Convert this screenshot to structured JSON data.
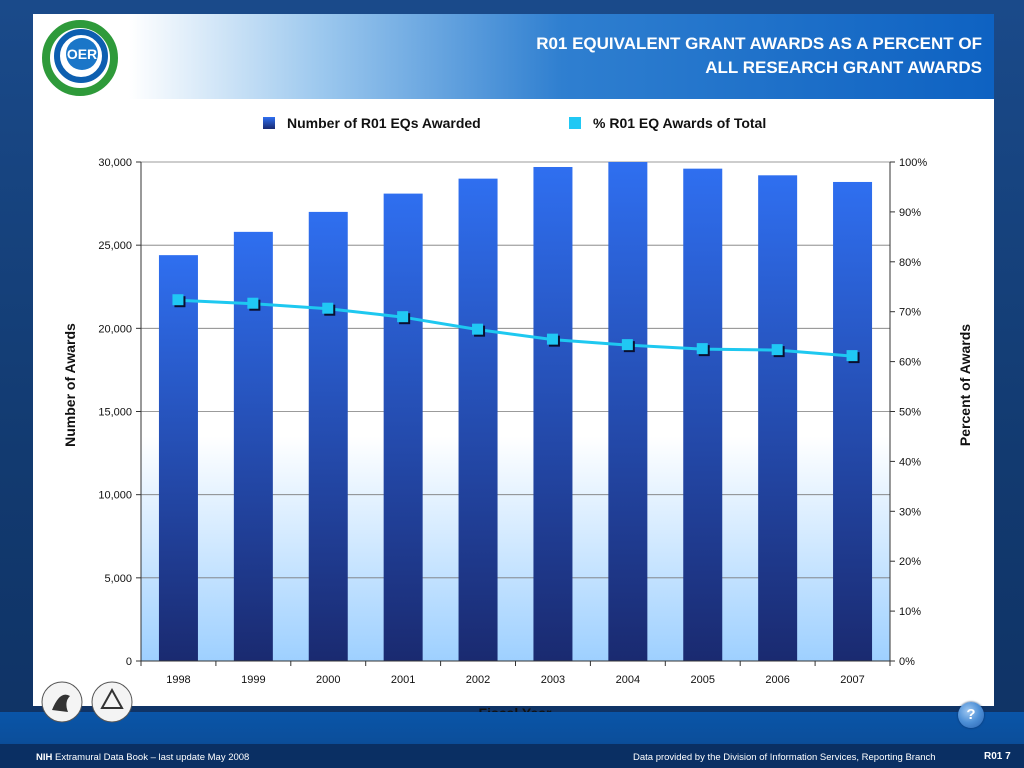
{
  "header": {
    "title_line1": "R01 EQUIVALENT GRANT AWARDS AS A PERCENT OF",
    "title_line2": "ALL RESEARCH GRANT AWARDS",
    "logo_text": "OER"
  },
  "legend": {
    "bar_label": "Number of R01 EQs Awarded",
    "line_label": "% R01 EQ Awards of Total"
  },
  "colors": {
    "bar_top": "#2f6ff0",
    "bar_bottom": "#1a2a70",
    "plot_bg_bottom": "#9ed0ff",
    "line": "#1ec8f0",
    "marker": "#20c8f4"
  },
  "chart_data": {
    "type": "bar",
    "categories": [
      "1998",
      "1999",
      "2000",
      "2001",
      "2002",
      "2003",
      "2004",
      "2005",
      "2006",
      "2007"
    ],
    "series": [
      {
        "name": "Number of R01 EQs Awarded",
        "type": "bar",
        "axis": "left",
        "values": [
          24400,
          25800,
          27000,
          28100,
          29000,
          29700,
          30000,
          29600,
          29200,
          28800
        ]
      },
      {
        "name": "% R01 EQ Awards of Total",
        "type": "line",
        "axis": "right",
        "values": [
          72.3,
          71.6,
          70.6,
          68.9,
          66.4,
          64.4,
          63.3,
          62.5,
          62.3,
          61.1
        ]
      }
    ],
    "xlabel": "Fiscal Year",
    "ylabel": "Number of Awards",
    "y2label": "Percent of Awards",
    "ylim": [
      0,
      30000
    ],
    "y2lim": [
      0,
      100
    ],
    "yticks": [
      "0",
      "5,000",
      "10,000",
      "15,000",
      "20,000",
      "25,000",
      "30,000"
    ],
    "y2ticks": [
      "0%",
      "10%",
      "20%",
      "30%",
      "40%",
      "50%",
      "60%",
      "70%",
      "80%",
      "90%",
      "100%"
    ],
    "grid": true,
    "legend_position": "top"
  },
  "footer": {
    "left_bold": "NIH",
    "left_text": " Extramural Data Book – last update May 2008",
    "middle": "Data provided by the Division of Information Services, Reporting Branch",
    "page": "R01 7",
    "help": "?"
  }
}
